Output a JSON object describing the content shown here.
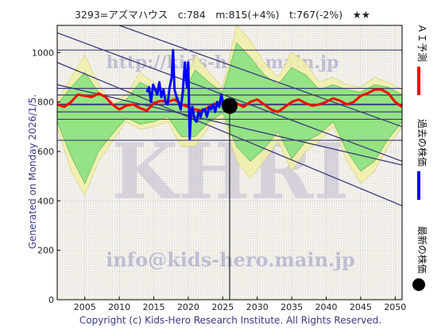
{
  "title": "3293=アズマハウス　c:784　m:815(+4%)　t:767(-2%)　★★",
  "side_caption": "Generated on Monday 2026/1/5.",
  "copyright": "Copyright (c) Kids-Hero Research Institute. All Rights Reserved.",
  "watermark_top": "http://kids-hero.main.jp",
  "watermark_big": "KHRI",
  "watermark_bottom": "info@kids-hero.main.jp",
  "legend": [
    {
      "label": "ＡＩ予測",
      "color": "#ff0000",
      "kind": "line"
    },
    {
      "label": "過去の株価",
      "color": "#0000ff",
      "kind": "line"
    },
    {
      "label": "最新の株価",
      "color": "#000000",
      "kind": "dot"
    }
  ],
  "chart_data": {
    "type": "line",
    "title": "3293=アズマハウス　c:784　m:815(+4%)　t:767(-2%)　★★",
    "xlim": [
      2001,
      2051
    ],
    "ylim": [
      0,
      1110
    ],
    "x_ticks": [
      2005,
      2010,
      2015,
      2020,
      2025,
      2030,
      2035,
      2040,
      2045,
      2050
    ],
    "y_ticks": [
      0,
      200,
      400,
      600,
      800,
      1000
    ],
    "grid": true,
    "current": {
      "x": 2026.0,
      "y": 784
    },
    "horizontal_levels": [
      1010,
      855,
      828,
      790,
      760,
      730,
      645
    ],
    "trend_lines": [
      {
        "x": [
          2001,
          2051
        ],
        "y": [
          1200,
          700
        ]
      },
      {
        "x": [
          2001,
          2051
        ],
        "y": [
          1080,
          560
        ]
      },
      {
        "x": [
          2001,
          2051
        ],
        "y": [
          960,
          380
        ]
      },
      {
        "x": [
          2001,
          2051
        ],
        "y": [
          870,
          545
        ]
      }
    ],
    "band_outer": {
      "x": [
        2001,
        2003,
        2005,
        2007,
        2009,
        2011,
        2013,
        2015,
        2017,
        2019,
        2021,
        2023,
        2025,
        2027,
        2029,
        2031,
        2033,
        2035,
        2037,
        2039,
        2041,
        2043,
        2045,
        2047,
        2049,
        2051
      ],
      "hi": [
        800,
        900,
        990,
        870,
        800,
        830,
        920,
        880,
        840,
        840,
        990,
        920,
        860,
        1110,
        1050,
        960,
        900,
        1000,
        960,
        880,
        900,
        870,
        860,
        900,
        880,
        850
      ],
      "lo": [
        700,
        520,
        420,
        560,
        640,
        720,
        690,
        700,
        720,
        620,
        620,
        700,
        740,
        560,
        490,
        560,
        640,
        520,
        600,
        640,
        700,
        560,
        470,
        520,
        620,
        700
      ]
    },
    "band_inner": {
      "x": [
        2001,
        2003,
        2005,
        2007,
        2009,
        2011,
        2013,
        2015,
        2017,
        2019,
        2021,
        2023,
        2025,
        2027,
        2029,
        2031,
        2033,
        2035,
        2037,
        2039,
        2041,
        2043,
        2045,
        2047,
        2049,
        2051
      ],
      "hi": [
        790,
        860,
        920,
        840,
        790,
        810,
        880,
        850,
        820,
        820,
        930,
        880,
        840,
        1040,
        980,
        910,
        870,
        940,
        910,
        850,
        870,
        850,
        840,
        870,
        860,
        830
      ],
      "lo": [
        720,
        580,
        470,
        600,
        670,
        735,
        710,
        720,
        740,
        660,
        660,
        720,
        755,
        620,
        560,
        610,
        680,
        570,
        640,
        670,
        720,
        600,
        520,
        560,
        650,
        720
      ]
    },
    "series": [
      {
        "name": "ＡＩ予測",
        "color": "#ff0000",
        "x": [
          2001,
          2002,
          2003,
          2004,
          2005,
          2006,
          2007,
          2008,
          2009,
          2010,
          2011,
          2012,
          2013,
          2014,
          2015,
          2016,
          2017,
          2018,
          2019,
          2020,
          2021,
          2022,
          2023,
          2024,
          2025,
          2026,
          2027,
          2028,
          2029,
          2030,
          2031,
          2032,
          2033,
          2034,
          2035,
          2036,
          2037,
          2038,
          2039,
          2040,
          2041,
          2042,
          2043,
          2044,
          2045,
          2046,
          2047,
          2048,
          2049,
          2050,
          2051
        ],
        "y": [
          790,
          780,
          800,
          830,
          825,
          820,
          835,
          820,
          790,
          770,
          785,
          790,
          775,
          765,
          795,
          805,
          800,
          810,
          790,
          780,
          770,
          765,
          780,
          795,
          800,
          790,
          795,
          780,
          800,
          810,
          790,
          770,
          760,
          780,
          800,
          810,
          795,
          785,
          790,
          800,
          815,
          805,
          790,
          800,
          825,
          835,
          850,
          850,
          835,
          800,
          780
        ]
      },
      {
        "name": "過去の株価",
        "color": "#0000ff",
        "x": [
          2014.0,
          2014.3,
          2014.6,
          2014.9,
          2015.2,
          2015.5,
          2015.8,
          2016.1,
          2016.4,
          2016.7,
          2017.0,
          2017.3,
          2017.6,
          2017.8,
          2018.0,
          2018.3,
          2018.6,
          2018.9,
          2019.2,
          2019.5,
          2019.8,
          2020.0,
          2020.2,
          2020.4,
          2020.6,
          2020.9,
          2021.2,
          2021.5,
          2021.8,
          2022.1,
          2022.4,
          2022.7,
          2023.0,
          2023.3,
          2023.6,
          2023.9,
          2024.2,
          2024.5,
          2024.8,
          2025.1,
          2025.4,
          2025.7,
          2026.0
        ],
        "y": [
          840,
          860,
          800,
          870,
          850,
          830,
          880,
          820,
          850,
          800,
          790,
          860,
          900,
          1010,
          850,
          820,
          800,
          770,
          840,
          960,
          860,
          960,
          650,
          760,
          780,
          730,
          720,
          760,
          740,
          770,
          770,
          740,
          780,
          770,
          790,
          760,
          800,
          780,
          830,
          790,
          790,
          780,
          784
        ]
      }
    ]
  }
}
